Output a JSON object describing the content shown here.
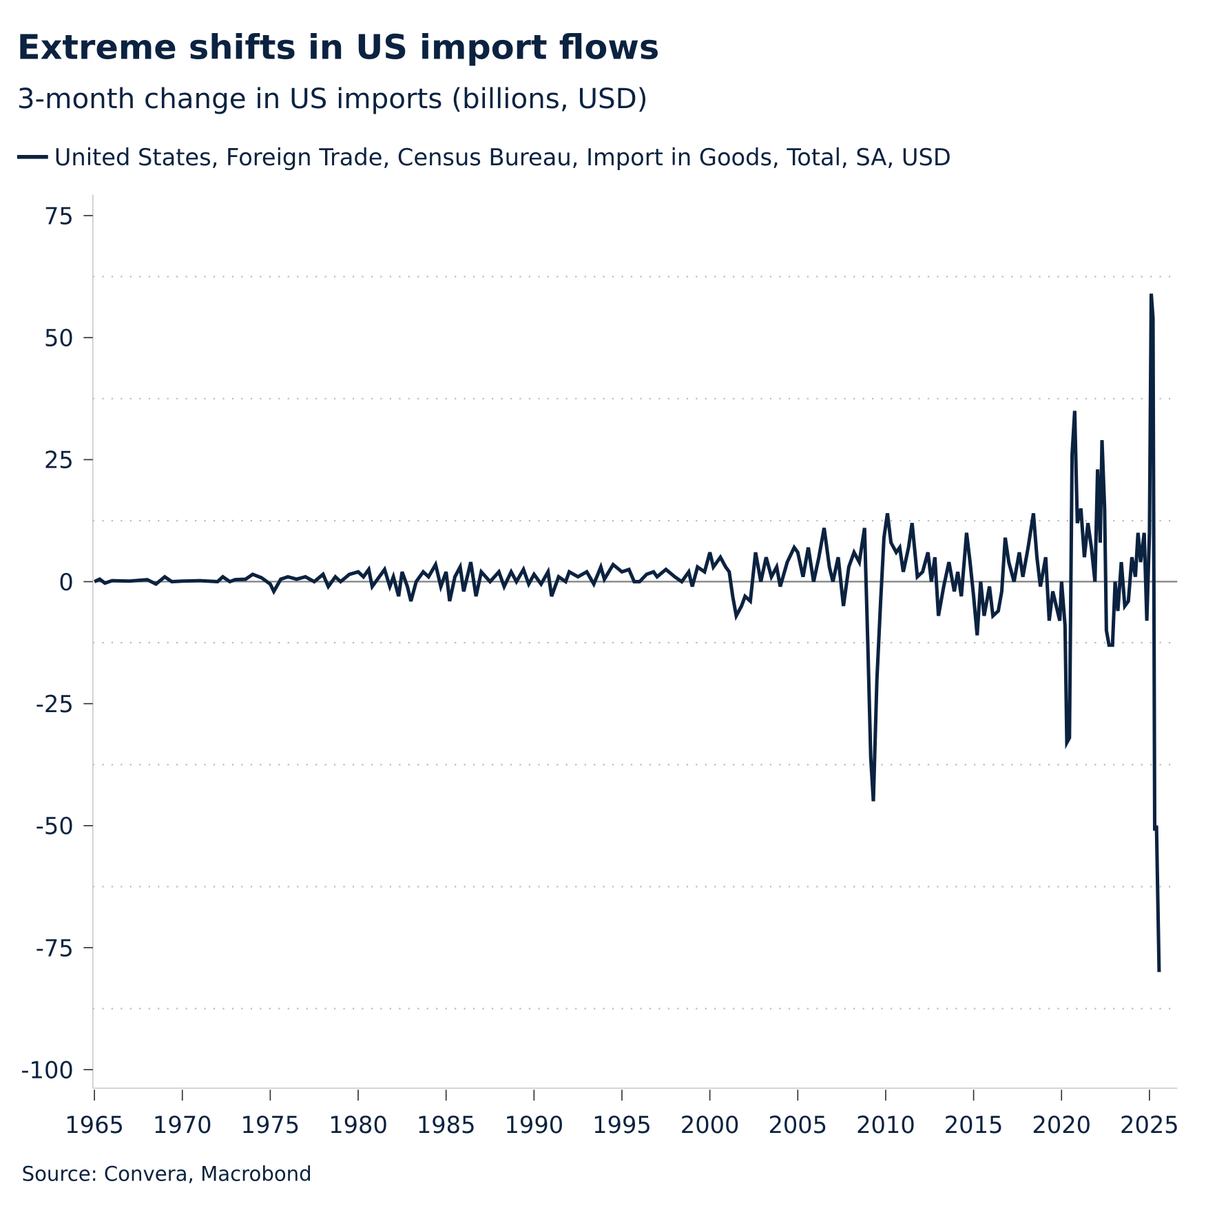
{
  "chart_data": {
    "type": "line",
    "title": "Extreme shifts in US import flows",
    "subtitle": "3-month change in US imports (billions, USD)",
    "source": "Source: Convera, Macrobond",
    "ylim": [
      -100,
      75
    ],
    "xlim": [
      1965,
      2026.6
    ],
    "yticks": [
      75,
      50,
      25,
      0,
      -25,
      -50,
      -75,
      -100
    ],
    "ytick_labels": [
      "75",
      "50",
      "25",
      "0",
      "-25",
      "-50",
      "-75",
      "-100"
    ],
    "xticks": [
      1965,
      1970,
      1975,
      1980,
      1985,
      1990,
      1995,
      2000,
      2005,
      2010,
      2015,
      2020,
      2025
    ],
    "xtick_labels": [
      "1965",
      "1970",
      "1975",
      "1980",
      "1985",
      "1990",
      "1995",
      "2000",
      "2005",
      "2010",
      "2015",
      "2020",
      "2025"
    ],
    "grid": "horizontal dotted",
    "legend_placement": "top-left",
    "colors": {
      "series": "#0b2240",
      "zero_line": "#808080",
      "grid": "#bbbbbb"
    },
    "series": [
      {
        "name": "United States, Foreign Trade, Census Bureau, Import in Goods, Total, SA, USD",
        "points": [
          [
            1965.0,
            0
          ],
          [
            1965.3,
            0.5
          ],
          [
            1965.6,
            -0.3
          ],
          [
            1966,
            0.2
          ],
          [
            1967,
            0.1
          ],
          [
            1968,
            0.4
          ],
          [
            1968.5,
            -0.5
          ],
          [
            1969,
            1
          ],
          [
            1969.4,
            0
          ],
          [
            1970,
            0.1
          ],
          [
            1971,
            0.2
          ],
          [
            1972,
            0
          ],
          [
            1972.3,
            1
          ],
          [
            1972.7,
            0
          ],
          [
            1973,
            0.4
          ],
          [
            1973.6,
            0.5
          ],
          [
            1974,
            1.5
          ],
          [
            1974.5,
            0.8
          ],
          [
            1975,
            -0.5
          ],
          [
            1975.2,
            -2
          ],
          [
            1975.6,
            0.5
          ],
          [
            1976,
            1
          ],
          [
            1976.5,
            0.5
          ],
          [
            1977,
            1
          ],
          [
            1977.5,
            0
          ],
          [
            1978,
            1.5
          ],
          [
            1978.3,
            -1
          ],
          [
            1978.7,
            1
          ],
          [
            1979,
            0
          ],
          [
            1979.5,
            1.5
          ],
          [
            1980,
            2
          ],
          [
            1980.3,
            1
          ],
          [
            1980.6,
            2.5
          ],
          [
            1980.8,
            -1
          ],
          [
            1981,
            0
          ],
          [
            1981.5,
            2.5
          ],
          [
            1981.8,
            -1
          ],
          [
            1982,
            1
          ],
          [
            1982.3,
            -3
          ],
          [
            1982.5,
            2
          ],
          [
            1982.8,
            -1
          ],
          [
            1983,
            -4
          ],
          [
            1983.3,
            0
          ],
          [
            1983.7,
            2
          ],
          [
            1984,
            1
          ],
          [
            1984.4,
            3.5
          ],
          [
            1984.7,
            -1
          ],
          [
            1985,
            2
          ],
          [
            1985.2,
            -4
          ],
          [
            1985.5,
            1
          ],
          [
            1985.8,
            3
          ],
          [
            1986,
            -2
          ],
          [
            1986.4,
            4
          ],
          [
            1986.7,
            -3
          ],
          [
            1987,
            2
          ],
          [
            1987.5,
            0
          ],
          [
            1988,
            2
          ],
          [
            1988.3,
            -1
          ],
          [
            1988.7,
            2
          ],
          [
            1989,
            0
          ],
          [
            1989.4,
            2.5
          ],
          [
            1989.7,
            -0.5
          ],
          [
            1990,
            1.5
          ],
          [
            1990.4,
            -0.5
          ],
          [
            1990.8,
            2
          ],
          [
            1991,
            -3
          ],
          [
            1991.4,
            1
          ],
          [
            1991.8,
            0
          ],
          [
            1992,
            2
          ],
          [
            1992.5,
            1
          ],
          [
            1993,
            2
          ],
          [
            1993.4,
            -0.5
          ],
          [
            1993.8,
            3
          ],
          [
            1994,
            0.5
          ],
          [
            1994.5,
            3.5
          ],
          [
            1995,
            2
          ],
          [
            1995.4,
            2.5
          ],
          [
            1995.7,
            0
          ],
          [
            1996,
            0
          ],
          [
            1996.4,
            1.5
          ],
          [
            1996.8,
            2
          ],
          [
            1997,
            1
          ],
          [
            1997.5,
            2.5
          ],
          [
            1998,
            1
          ],
          [
            1998.4,
            0
          ],
          [
            1998.8,
            2
          ],
          [
            1999,
            -1
          ],
          [
            1999.3,
            3
          ],
          [
            1999.7,
            2
          ],
          [
            2000,
            6
          ],
          [
            2000.2,
            3
          ],
          [
            2000.6,
            5
          ],
          [
            2000.9,
            3
          ],
          [
            2001.1,
            2
          ],
          [
            2001.3,
            -3
          ],
          [
            2001.5,
            -7
          ],
          [
            2001.8,
            -5
          ],
          [
            2002,
            -3
          ],
          [
            2002.3,
            -4
          ],
          [
            2002.6,
            6
          ],
          [
            2002.9,
            0
          ],
          [
            2003.2,
            5
          ],
          [
            2003.5,
            1
          ],
          [
            2003.8,
            3
          ],
          [
            2004,
            -1
          ],
          [
            2004.4,
            4
          ],
          [
            2004.8,
            7
          ],
          [
            2005,
            6
          ],
          [
            2005.3,
            1
          ],
          [
            2005.6,
            7
          ],
          [
            2005.9,
            0
          ],
          [
            2006.2,
            5
          ],
          [
            2006.5,
            11
          ],
          [
            2006.8,
            3
          ],
          [
            2007,
            0
          ],
          [
            2007.3,
            5
          ],
          [
            2007.6,
            -5
          ],
          [
            2007.9,
            3
          ],
          [
            2008.2,
            6
          ],
          [
            2008.5,
            4
          ],
          [
            2008.8,
            11
          ],
          [
            2009.0,
            -15
          ],
          [
            2009.15,
            -36
          ],
          [
            2009.3,
            -45
          ],
          [
            2009.5,
            -20
          ],
          [
            2009.7,
            -5
          ],
          [
            2009.9,
            9
          ],
          [
            2010.1,
            14
          ],
          [
            2010.3,
            8
          ],
          [
            2010.6,
            6
          ],
          [
            2010.8,
            7
          ],
          [
            2011,
            2
          ],
          [
            2011.3,
            7
          ],
          [
            2011.5,
            12
          ],
          [
            2011.8,
            1
          ],
          [
            2012.1,
            2
          ],
          [
            2012.4,
            6
          ],
          [
            2012.6,
            0
          ],
          [
            2012.8,
            5
          ],
          [
            2013,
            -7
          ],
          [
            2013.3,
            -1
          ],
          [
            2013.6,
            4
          ],
          [
            2013.9,
            -2
          ],
          [
            2014.1,
            2
          ],
          [
            2014.3,
            -3
          ],
          [
            2014.6,
            10
          ],
          [
            2014.8,
            4
          ],
          [
            2015,
            -3
          ],
          [
            2015.2,
            -11
          ],
          [
            2015.4,
            0
          ],
          [
            2015.6,
            -7
          ],
          [
            2015.9,
            -1
          ],
          [
            2016.1,
            -7
          ],
          [
            2016.4,
            -6
          ],
          [
            2016.6,
            -2
          ],
          [
            2016.8,
            9
          ],
          [
            2017,
            4
          ],
          [
            2017.3,
            0
          ],
          [
            2017.6,
            6
          ],
          [
            2017.8,
            1
          ],
          [
            2018.1,
            7
          ],
          [
            2018.4,
            14
          ],
          [
            2018.6,
            5
          ],
          [
            2018.8,
            -1
          ],
          [
            2019.1,
            5
          ],
          [
            2019.3,
            -8
          ],
          [
            2019.5,
            -2
          ],
          [
            2019.7,
            -5
          ],
          [
            2019.9,
            -8
          ],
          [
            2020.0,
            0
          ],
          [
            2020.2,
            -9
          ],
          [
            2020.3,
            -33
          ],
          [
            2020.45,
            -32
          ],
          [
            2020.6,
            26
          ],
          [
            2020.75,
            35
          ],
          [
            2020.9,
            12
          ],
          [
            2021.1,
            15
          ],
          [
            2021.3,
            5
          ],
          [
            2021.5,
            12
          ],
          [
            2021.7,
            7
          ],
          [
            2021.9,
            0
          ],
          [
            2022.05,
            23
          ],
          [
            2022.2,
            8
          ],
          [
            2022.3,
            29
          ],
          [
            2022.45,
            15
          ],
          [
            2022.55,
            -10
          ],
          [
            2022.7,
            -13
          ],
          [
            2022.9,
            -13
          ],
          [
            2023.05,
            0
          ],
          [
            2023.2,
            -6
          ],
          [
            2023.4,
            4
          ],
          [
            2023.6,
            -5
          ],
          [
            2023.8,
            -4
          ],
          [
            2024,
            5
          ],
          [
            2024.2,
            1
          ],
          [
            2024.35,
            10
          ],
          [
            2024.5,
            4
          ],
          [
            2024.7,
            10
          ],
          [
            2024.85,
            -8
          ],
          [
            2025.0,
            10
          ],
          [
            2025.1,
            59
          ],
          [
            2025.2,
            54
          ],
          [
            2025.3,
            -51
          ],
          [
            2025.4,
            -50
          ],
          [
            2025.55,
            -80
          ]
        ]
      }
    ]
  }
}
